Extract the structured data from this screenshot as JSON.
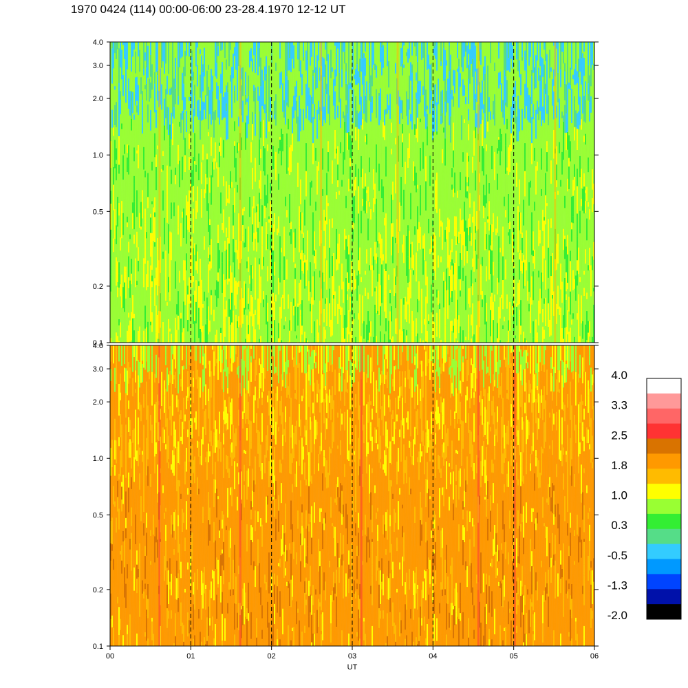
{
  "title": "1970 0424 (114) 00:00-06:00 23-28.4.1970  12-12 UT",
  "chart_data": [
    {
      "type": "heatmap",
      "panel": "top",
      "y_scale": "log",
      "ylim": [
        0.1,
        4.0
      ],
      "y_ticks": [
        "0.1",
        "0.2",
        "0.5",
        "1.0",
        "2.0",
        "3.0",
        "4.0"
      ],
      "y_tick_values": [
        0.1,
        0.2,
        0.5,
        1.0,
        2.0,
        3.0,
        4.0
      ],
      "xlim": [
        0,
        6
      ],
      "dominant_color": "#99ff33",
      "description_levels": "mostly light green (0.3 to 1.0) with yellow at lower values and green/cyan at the top"
    },
    {
      "type": "heatmap",
      "panel": "bottom",
      "y_scale": "log",
      "ylim": [
        0.1,
        4.0
      ],
      "y_ticks": [
        "0.1",
        "0.2",
        "0.5",
        "1.0",
        "2.0",
        "3.0",
        "4.0"
      ],
      "y_tick_values": [
        0.1,
        0.2,
        0.5,
        1.0,
        2.0,
        3.0,
        4.0
      ],
      "xlim": [
        0,
        6
      ],
      "xlabel": "UT",
      "x_ticks": [
        "00",
        "01",
        "02",
        "03",
        "04",
        "05",
        "06"
      ],
      "x_tick_values": [
        0,
        1,
        2,
        3,
        4,
        5,
        6
      ],
      "dominant_color": "#ff9900"
    }
  ],
  "colorbar": {
    "labels": [
      "4.0",
      "3.3",
      "2.5",
      "1.8",
      "1.0",
      "0.3",
      "-0.5",
      "-1.3",
      "-2.0"
    ],
    "colors": [
      "#ffffff",
      "#ff9999",
      "#ff6666",
      "#ff3333",
      "#d97300",
      "#ff9900",
      "#ffbb00",
      "#ffff00",
      "#99ff33",
      "#33ee33",
      "#55dd88",
      "#33ccff",
      "#0099ff",
      "#0044ff",
      "#0011aa",
      "#000000"
    ]
  },
  "dashed_hour_lines": [
    1,
    2,
    3,
    4,
    5
  ]
}
